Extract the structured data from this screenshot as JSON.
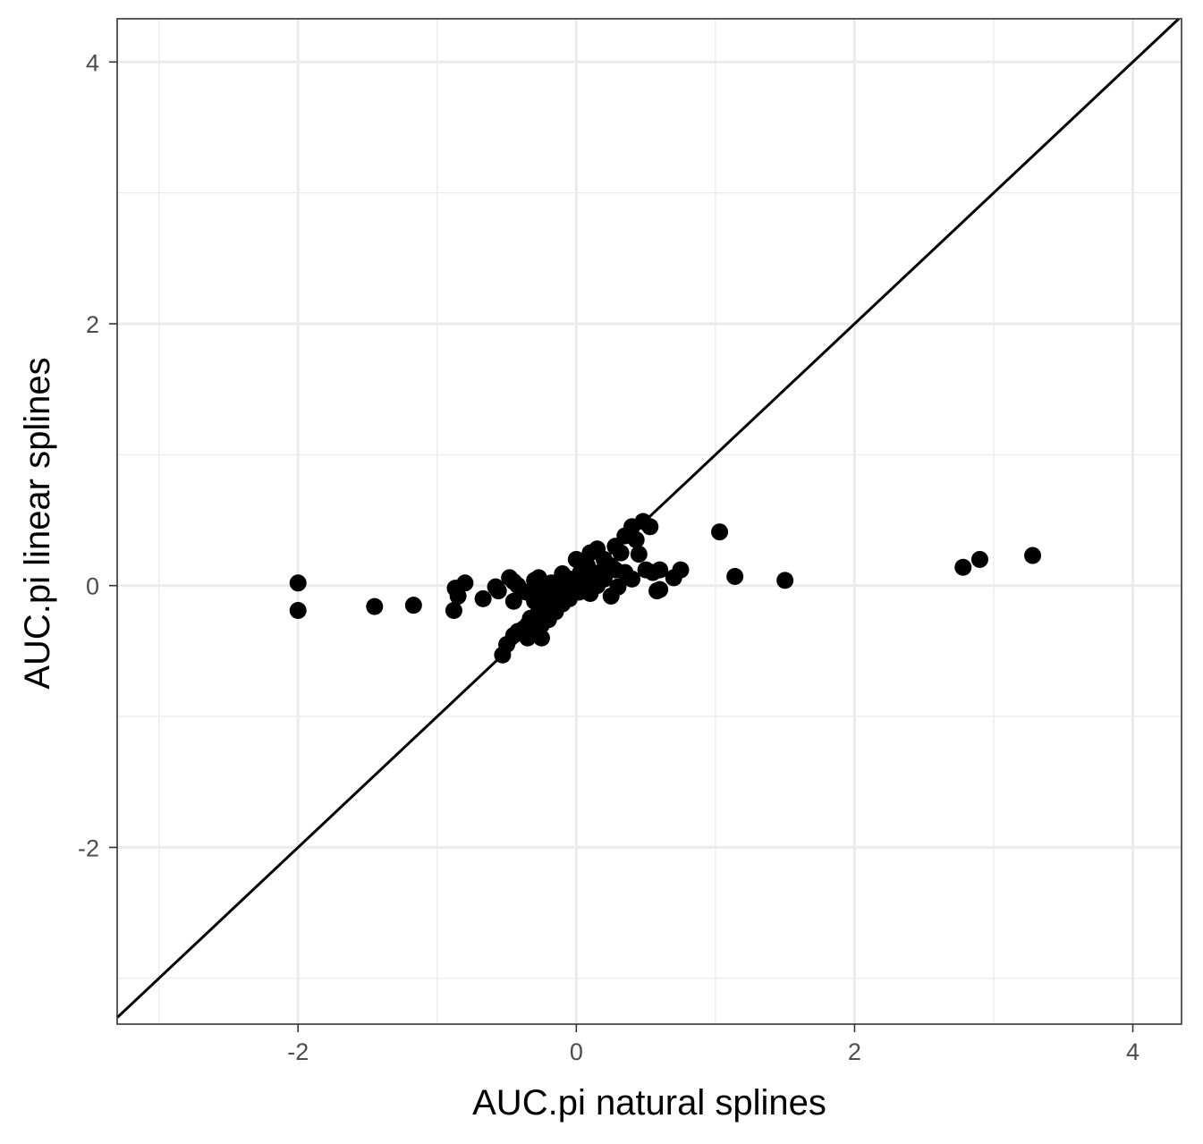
{
  "chart_data": {
    "type": "scatter",
    "title": "",
    "xlabel": "AUC.pi natural splines",
    "ylabel": "AUC.pi linear splines",
    "xlim": [
      -3.3,
      4.35
    ],
    "ylim": [
      -3.35,
      4.33
    ],
    "x_ticks": [
      -2,
      0,
      2,
      4
    ],
    "y_ticks": [
      -2,
      0,
      2,
      4
    ],
    "x_tick_labels": [
      "-2",
      "0",
      "2",
      "4"
    ],
    "y_tick_labels": [
      "-2",
      "0",
      "2",
      "4"
    ],
    "grid": true,
    "legend": "none",
    "reference_line": {
      "type": "identity",
      "slope": 1,
      "intercept": 0
    },
    "marker_color": "#000000",
    "series": [
      {
        "points": [
          [
            -2.0,
            0.02
          ],
          [
            -2.0,
            -0.19
          ],
          [
            -1.45,
            -0.16
          ],
          [
            -1.17,
            -0.15
          ],
          [
            -0.88,
            -0.19
          ],
          [
            -0.87,
            -0.02
          ],
          [
            -0.85,
            -0.08
          ],
          [
            -0.8,
            0.02
          ],
          [
            -0.67,
            -0.1
          ],
          [
            -0.58,
            -0.01
          ],
          [
            -0.56,
            -0.04
          ],
          [
            -0.48,
            0.06
          ],
          [
            -0.45,
            0.03
          ],
          [
            -0.42,
            0.0
          ],
          [
            -0.45,
            -0.12
          ],
          [
            -0.36,
            -0.05
          ],
          [
            -0.3,
            0.04
          ],
          [
            -0.27,
            0.06
          ],
          [
            -0.22,
            -0.02
          ],
          [
            -0.18,
            0.02
          ],
          [
            -0.1,
            0.09
          ],
          [
            -0.05,
            0.05
          ],
          [
            0.0,
            0.2
          ],
          [
            0.03,
            0.1
          ],
          [
            0.08,
            0.15
          ],
          [
            0.1,
            0.25
          ],
          [
            0.15,
            0.28
          ],
          [
            0.2,
            0.2
          ],
          [
            0.25,
            0.15
          ],
          [
            0.28,
            0.3
          ],
          [
            0.32,
            0.25
          ],
          [
            0.35,
            0.38
          ],
          [
            0.4,
            0.45
          ],
          [
            0.43,
            0.35
          ],
          [
            0.48,
            0.49
          ],
          [
            0.53,
            0.45
          ],
          [
            0.45,
            0.24
          ],
          [
            0.5,
            0.12
          ],
          [
            0.55,
            0.1
          ],
          [
            0.6,
            0.12
          ],
          [
            0.58,
            -0.04
          ],
          [
            0.6,
            -0.03
          ],
          [
            0.7,
            0.06
          ],
          [
            0.75,
            0.12
          ],
          [
            0.4,
            0.05
          ],
          [
            0.35,
            0.1
          ],
          [
            0.3,
            -0.01
          ],
          [
            0.25,
            -0.08
          ],
          [
            0.2,
            0.05
          ],
          [
            0.15,
            0.0
          ],
          [
            0.12,
            0.08
          ],
          [
            0.1,
            -0.06
          ],
          [
            0.05,
            0.02
          ],
          [
            0.02,
            -0.05
          ],
          [
            -0.02,
            0.0
          ],
          [
            -0.05,
            -0.1
          ],
          [
            -0.08,
            -0.05
          ],
          [
            -0.1,
            -0.14
          ],
          [
            -0.12,
            -0.02
          ],
          [
            -0.15,
            -0.2
          ],
          [
            -0.18,
            -0.1
          ],
          [
            -0.2,
            -0.26
          ],
          [
            -0.22,
            -0.15
          ],
          [
            -0.25,
            -0.3
          ],
          [
            -0.28,
            -0.22
          ],
          [
            -0.3,
            -0.35
          ],
          [
            -0.33,
            -0.25
          ],
          [
            -0.35,
            -0.4
          ],
          [
            -0.38,
            -0.33
          ],
          [
            -0.42,
            -0.35
          ],
          [
            -0.45,
            -0.38
          ],
          [
            -0.5,
            -0.45
          ],
          [
            -0.53,
            -0.53
          ],
          [
            -0.25,
            -0.4
          ],
          [
            -0.35,
            -0.3
          ],
          [
            -0.15,
            -0.08
          ],
          [
            -0.1,
            0.02
          ],
          [
            0.05,
            0.12
          ],
          [
            0.18,
            0.1
          ],
          [
            0.08,
            -0.02
          ],
          [
            -0.3,
            -0.12
          ],
          [
            -0.25,
            -0.05
          ],
          [
            -0.2,
            0.0
          ],
          [
            0.28,
            0.12
          ],
          [
            1.03,
            0.41
          ],
          [
            1.14,
            0.07
          ],
          [
            1.5,
            0.04
          ],
          [
            2.78,
            0.14
          ],
          [
            2.9,
            0.2
          ],
          [
            3.28,
            0.23
          ]
        ]
      }
    ]
  }
}
